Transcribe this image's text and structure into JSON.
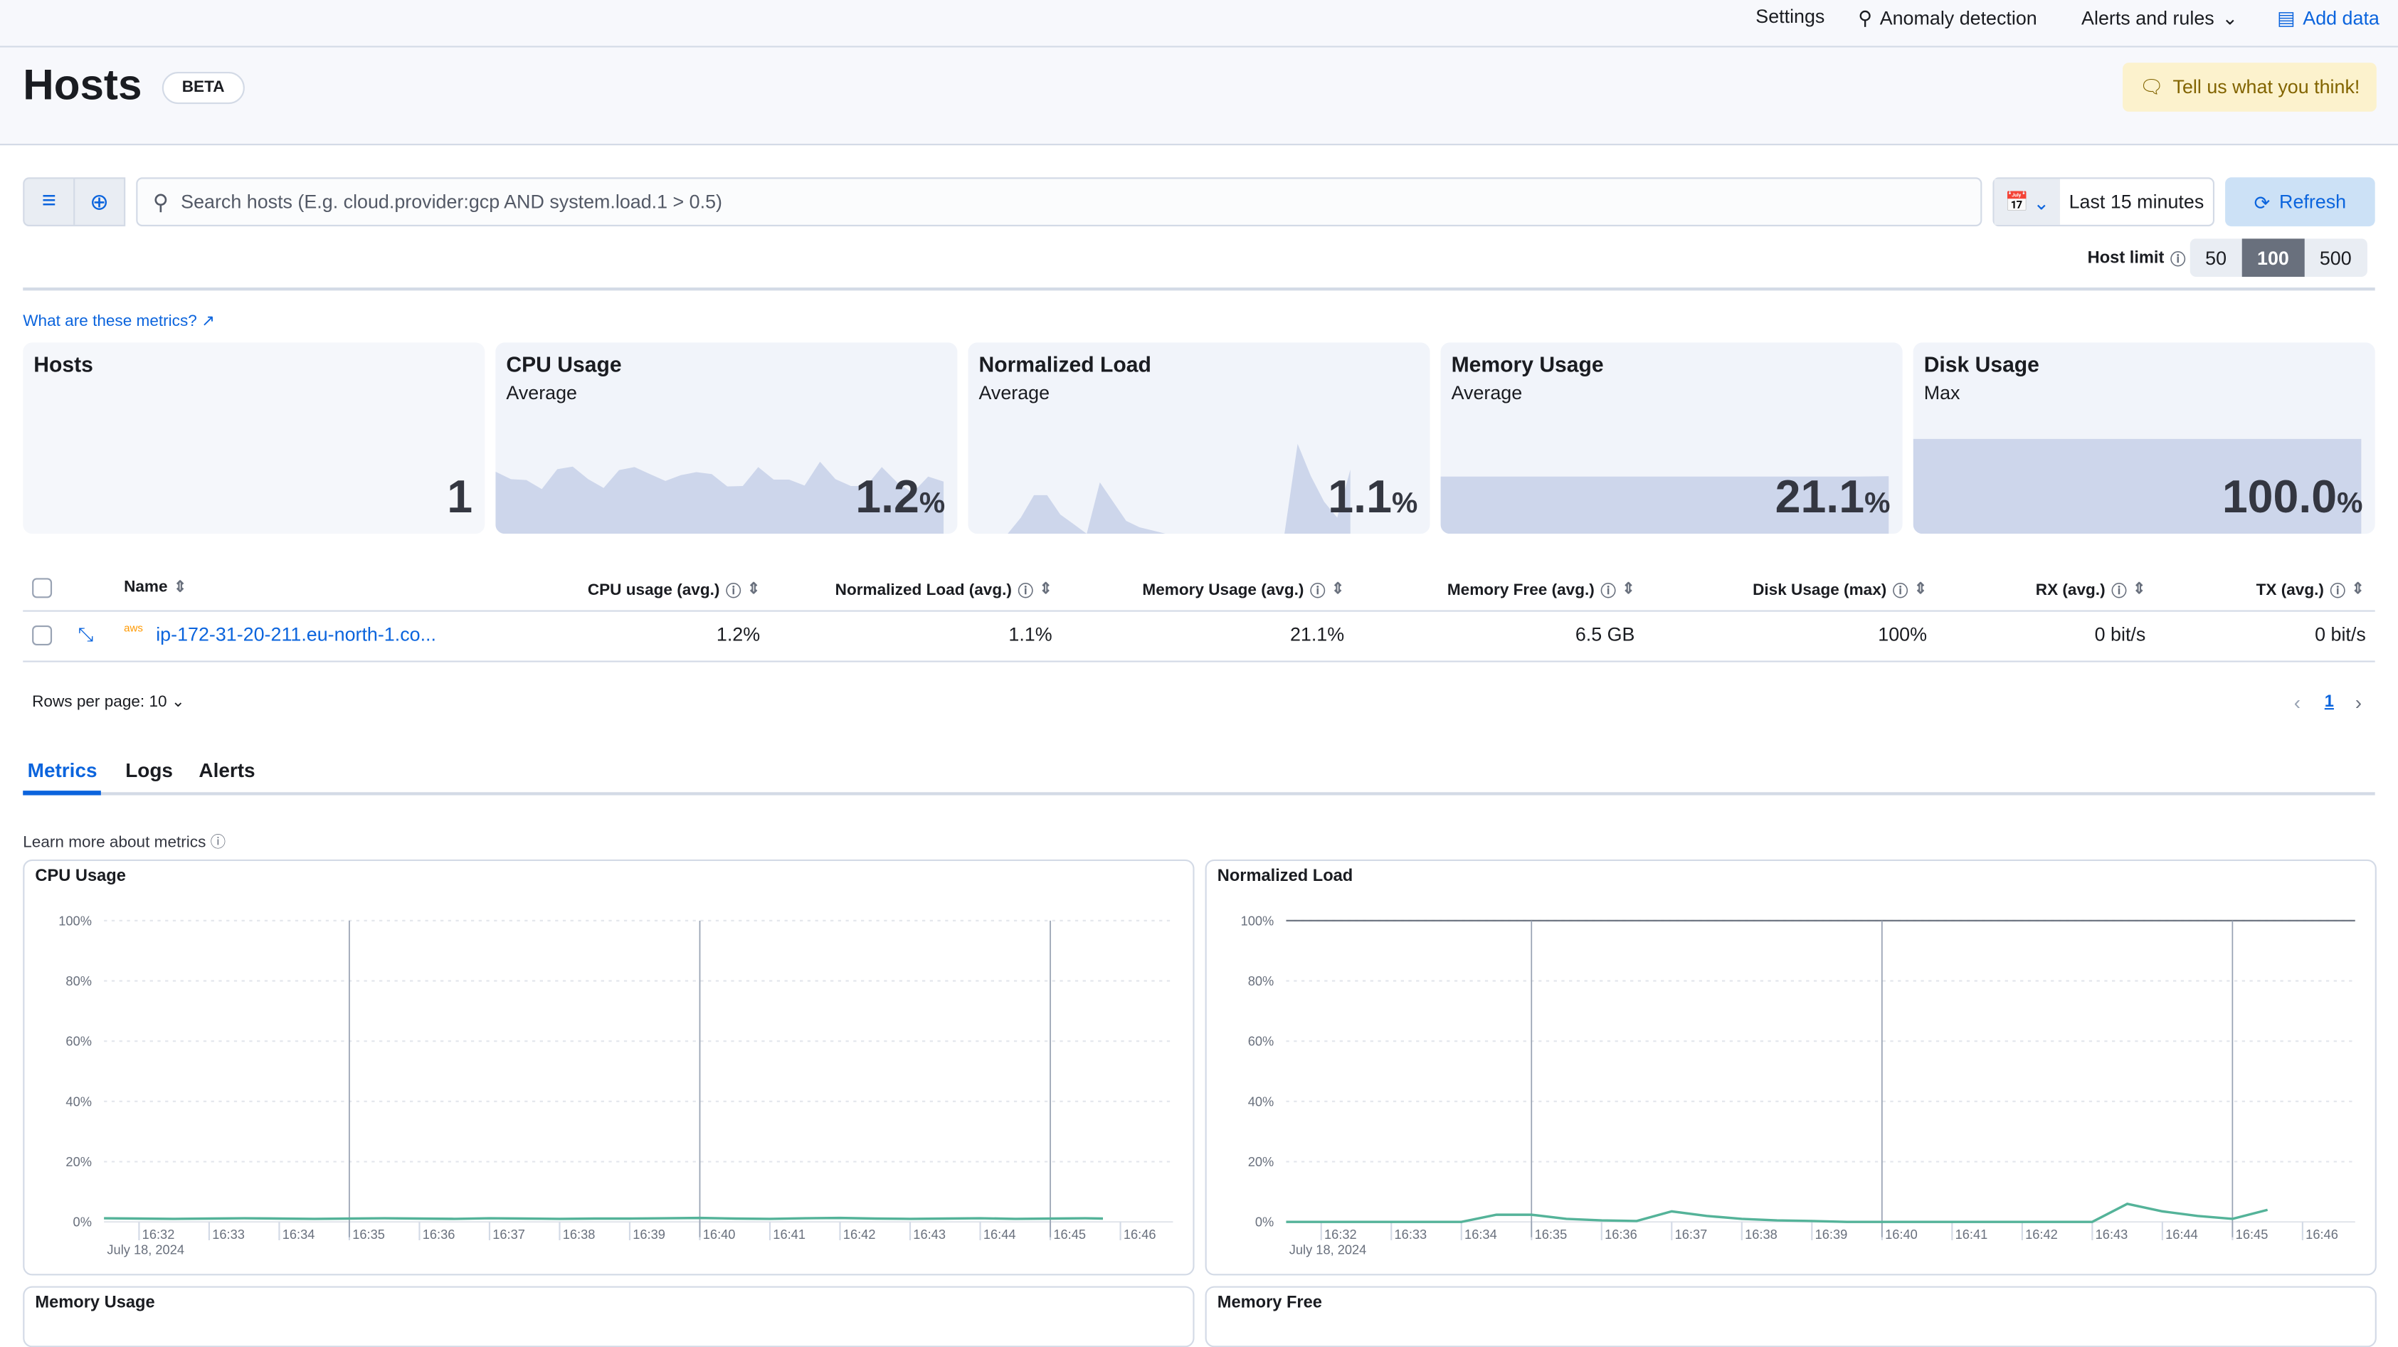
{
  "topnav": {
    "settings": "Settings",
    "anomaly": "Anomaly detection",
    "alerts": "Alerts and rules",
    "add_data": "Add data"
  },
  "header": {
    "title": "Hosts",
    "badge": "BETA",
    "feedback": "Tell us what you think!"
  },
  "search": {
    "placeholder": "Search hosts (E.g. cloud.provider:gcp AND system.load.1 > 0.5)",
    "value": ""
  },
  "time": {
    "range": "Last 15 minutes",
    "refresh": "Refresh"
  },
  "host_limit": {
    "label": "Host limit",
    "options": [
      "50",
      "100",
      "500"
    ],
    "selected": "100"
  },
  "metrics_link": "What are these metrics?",
  "kpis": [
    {
      "title": "Hosts",
      "subtitle": "",
      "value": "1",
      "unit": ""
    },
    {
      "title": "CPU Usage",
      "subtitle": "Average",
      "value": "1.2",
      "unit": "%",
      "spark": [
        1.25,
        1.1,
        1.08,
        0.9,
        1.3,
        1.35,
        1.1,
        0.92,
        1.28,
        1.34,
        1.2,
        1.06,
        1.18,
        1.24,
        1.2,
        0.95,
        0.96,
        1.34,
        1.09,
        1.09,
        0.97,
        1.45,
        1.1,
        0.96,
        0.96,
        1.34,
        1.03,
        0.82,
        1.15,
        1.05
      ]
    },
    {
      "title": "Normalized Load",
      "subtitle": "Average",
      "value": "1.1",
      "unit": "%",
      "spark": [
        0,
        0,
        0,
        0,
        0.5,
        1.2,
        1.2,
        0.6,
        0.3,
        0,
        1.6,
        1.0,
        0.4,
        0.2,
        0.1,
        0,
        0,
        0,
        0,
        0,
        0,
        0,
        0,
        0,
        0,
        2.8,
        1.8,
        1.0,
        0.5,
        2.0
      ]
    },
    {
      "title": "Memory Usage",
      "subtitle": "Average",
      "value": "21.1",
      "unit": "%",
      "spark": [
        21.1,
        21.1,
        21.1,
        21.1,
        21.1,
        21.1,
        21.1,
        21.1,
        21.1,
        21.1,
        21.1,
        21.1,
        21.1,
        21.1,
        21.2
      ]
    },
    {
      "title": "Disk Usage",
      "subtitle": "Max",
      "value": "100.0",
      "unit": "%",
      "spark": [
        100,
        100,
        100,
        100,
        100,
        100,
        100,
        100,
        100,
        100
      ]
    }
  ],
  "table": {
    "columns": [
      "Name",
      "CPU usage (avg.)",
      "Normalized Load (avg.)",
      "Memory Usage (avg.)",
      "Memory Free (avg.)",
      "Disk Usage (max)",
      "RX (avg.)",
      "TX (avg.)"
    ],
    "rows": [
      {
        "cloud": "aws",
        "name": "ip-172-31-20-211.eu-north-1.co...",
        "cpu": "1.2%",
        "load": "1.1%",
        "memory": "21.1%",
        "memfree": "6.5 GB",
        "disk": "100%",
        "rx": "0 bit/s",
        "tx": "0 bit/s"
      }
    ],
    "rows_per_page": "Rows per page: 10",
    "page": "1"
  },
  "tabs": [
    "Metrics",
    "Logs",
    "Alerts"
  ],
  "learn_more": "Learn more about metrics",
  "chart_data": [
    {
      "type": "line",
      "title": "CPU Usage",
      "date_label": "July 18, 2024",
      "ylim": [
        0,
        100
      ],
      "yticks": [
        "0%",
        "20%",
        "40%",
        "60%",
        "80%",
        "100%"
      ],
      "xticks": [
        "16:32",
        "16:33",
        "16:34",
        "16:35",
        "16:36",
        "16:37",
        "16:38",
        "16:39",
        "16:40",
        "16:41",
        "16:42",
        "16:43",
        "16:44",
        "16:45",
        "16:46"
      ],
      "annotations": [
        "16:35",
        "16:40",
        "16:45"
      ],
      "color": "#54b399",
      "x": [
        31.5,
        32,
        32.5,
        33,
        33.5,
        34,
        34.5,
        35,
        35.5,
        36,
        36.5,
        37,
        37.5,
        38,
        38.5,
        39,
        39.5,
        40,
        40.5,
        41,
        41.5,
        42,
        42.5,
        43,
        43.5,
        44,
        44.5,
        45,
        45.5,
        45.75
      ],
      "values": [
        1.2,
        1.1,
        1.0,
        1.1,
        1.2,
        1.1,
        1.0,
        1.1,
        1.2,
        1.1,
        1.0,
        1.2,
        1.1,
        1.0,
        1.1,
        1.1,
        1.2,
        1.3,
        1.1,
        1.0,
        1.2,
        1.3,
        1.1,
        1.0,
        1.1,
        1.2,
        1.0,
        1.1,
        1.2,
        1.1
      ]
    },
    {
      "type": "line",
      "title": "Normalized Load",
      "date_label": "July 18, 2024",
      "ylim": [
        0,
        100
      ],
      "yticks": [
        "0%",
        "20%",
        "40%",
        "60%",
        "80%",
        "100%"
      ],
      "xticks": [
        "16:32",
        "16:33",
        "16:34",
        "16:35",
        "16:36",
        "16:37",
        "16:38",
        "16:39",
        "16:40",
        "16:41",
        "16:42",
        "16:43",
        "16:44",
        "16:45",
        "16:46"
      ],
      "annotations": [
        "16:35",
        "16:40",
        "16:45"
      ],
      "color": "#54b399",
      "x": [
        31.5,
        34,
        34.5,
        35,
        35.5,
        36,
        36.5,
        37,
        37.5,
        38,
        38.5,
        39,
        39.5,
        40,
        43,
        43.5,
        44,
        44.5,
        45,
        45.5
      ],
      "values": [
        0,
        0,
        2.4,
        2.4,
        1,
        0.5,
        0.3,
        3.5,
        2,
        1,
        0.5,
        0.3,
        0,
        0,
        0,
        6,
        3.5,
        2,
        1,
        4
      ]
    }
  ],
  "bottom_panels": [
    "Memory Usage",
    "Memory Free"
  ]
}
